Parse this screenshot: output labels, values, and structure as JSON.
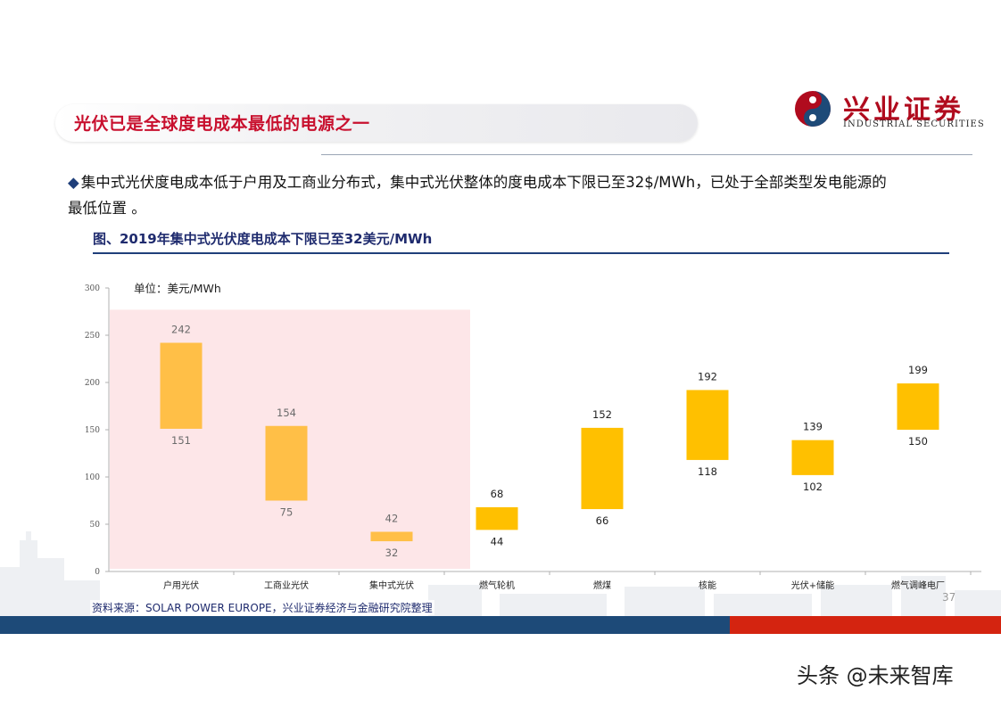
{
  "header": {
    "title": "光伏已是全球度电成本最低的电源之一",
    "logo_cn": "兴业证券",
    "logo_en": "INDUSTRIAL SECURITIES"
  },
  "bullet": {
    "symbol": "◆",
    "text": "集中式光伏度电成本低于户用及工商业分布式，集中式光伏整体的度电成本下限已至32$/MWh，已处于全部类型发电能源的最低位置 。"
  },
  "figure": {
    "title": "图、2019年集中式光伏度电成本下限已至32美元/MWh"
  },
  "chart_data": {
    "type": "bar",
    "subtype": "floating-range",
    "unit_label": "单位：美元/MWh",
    "categories": [
      "户用光伏",
      "工商业光伏",
      "集中式光伏",
      "燃气轮机",
      "燃煤",
      "核能",
      "光伏+储能",
      "燃气调峰电厂"
    ],
    "series": [
      {
        "low": [
          151,
          75,
          32,
          44,
          66,
          118,
          102,
          150
        ],
        "high": [
          242,
          154,
          42,
          68,
          152,
          192,
          139,
          199
        ]
      }
    ],
    "ylim": [
      0,
      300
    ],
    "yticks": [
      0,
      50,
      100,
      150,
      200,
      250,
      300
    ],
    "highlighted_categories": [
      "户用光伏",
      "工商业光伏",
      "集中式光伏"
    ],
    "colors": {
      "bar": "#FFC000",
      "bar_highlighted": "#FFBF47",
      "highlight_area": "#FDE6E8",
      "label_highlighted": "#6b6b6b",
      "label": "#222222"
    }
  },
  "footer": {
    "source": "资料来源：SOLAR POWER EUROPE，兴业证券经济与金融研究院整理",
    "page_number": "37",
    "watermark": "头条 @未来智库"
  },
  "colors": {
    "accent_red": "#C8102E",
    "brand_blue": "#1D4A78",
    "band_red": "#D42410"
  }
}
